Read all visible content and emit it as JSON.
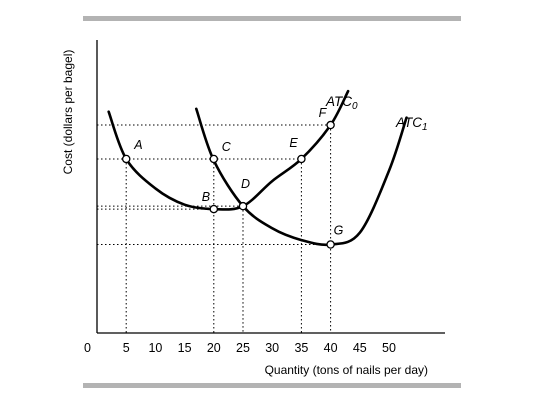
{
  "chart_data": {
    "type": "line",
    "xlabel": "Quantity (tons of nails per day)",
    "ylabel": "Cost (dollars per bagel)",
    "x_ticks": [
      "5",
      "10",
      "15",
      "20",
      "25",
      "30",
      "35",
      "40",
      "45",
      "50"
    ],
    "origin_label": "0",
    "series": [
      {
        "name": "ATC0",
        "label_main": "ATC",
        "label_sub": "0",
        "x": [
          2,
          5,
          10,
          15,
          20,
          25,
          30,
          35,
          40,
          43
        ],
        "y": [
          7.5,
          5.9,
          4.9,
          4.35,
          4.2,
          4.3,
          5.15,
          5.9,
          7.05,
          8.2
        ]
      },
      {
        "name": "ATC1",
        "label_main": "ATC",
        "label_sub": "1",
        "x": [
          17,
          20,
          25,
          30,
          35,
          40,
          45,
          50,
          53
        ],
        "y": [
          7.6,
          5.85,
          4.3,
          3.55,
          3.15,
          3.0,
          3.4,
          5.5,
          7.3
        ]
      }
    ],
    "points": [
      {
        "label": "A",
        "x": 5,
        "y": 5.9
      },
      {
        "label": "B",
        "x": 20,
        "y": 4.2
      },
      {
        "label": "C",
        "x": 20,
        "y": 5.9
      },
      {
        "label": "D",
        "x": 25,
        "y": 4.3
      },
      {
        "label": "E",
        "x": 35,
        "y": 5.9
      },
      {
        "label": "F",
        "x": 40,
        "y": 7.05
      },
      {
        "label": "G",
        "x": 40,
        "y": 3.0
      }
    ],
    "xlim": [
      0,
      55
    ],
    "ylim": [
      0,
      10
    ]
  }
}
